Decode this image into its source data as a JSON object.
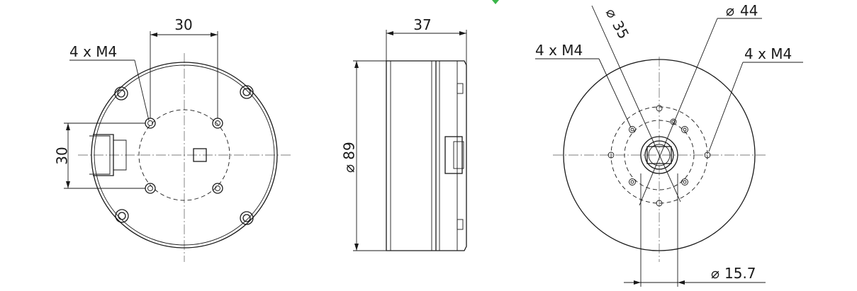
{
  "views": {
    "front": {
      "label_bolt_pattern": "4 x M4",
      "dim_horizontal": "30",
      "dim_vertical": "30"
    },
    "side": {
      "dim_width": "37",
      "dim_diameter": "89",
      "diameter_symbol": "⌀"
    },
    "rear": {
      "dim_diameter_inner": "35",
      "dim_diameter_outer": "44",
      "label_bolt_left": "4 x M4",
      "label_bolt_right": "4 x M4",
      "dim_shaft": "15.7",
      "diameter_symbol": "⌀"
    }
  },
  "colors": {
    "line": "#1a1a1a",
    "accent_mark": "#3bb54a"
  }
}
